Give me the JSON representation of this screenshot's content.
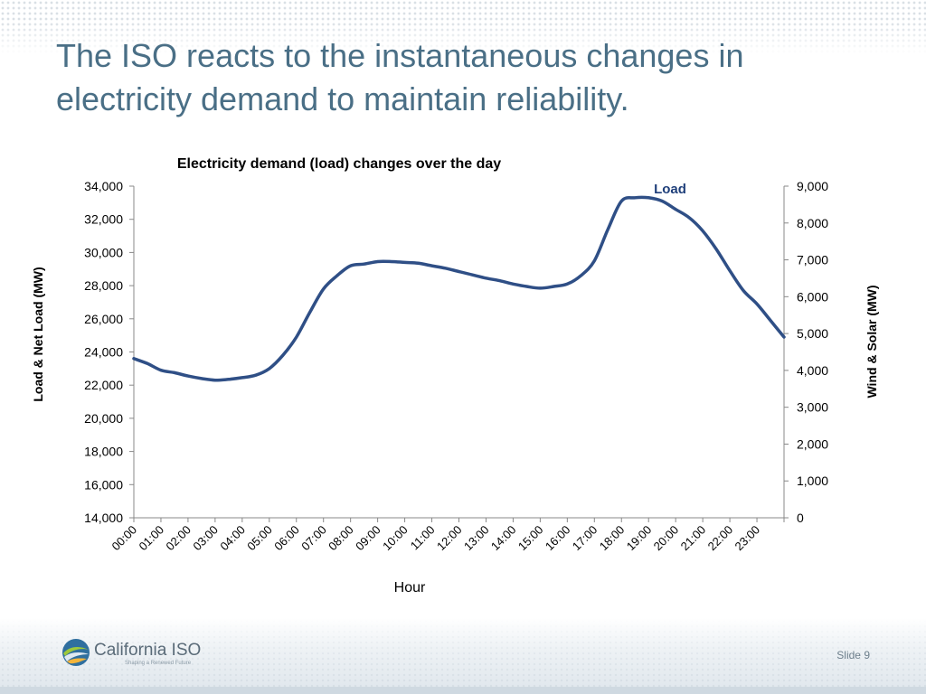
{
  "slide": {
    "title": "The ISO reacts to the instantaneous changes in electricity demand to maintain reliability.",
    "slide_number": "Slide 9",
    "logo_name": "California ISO",
    "logo_tagline": "Shaping a Renewed Future"
  },
  "colors": {
    "title": "#4a6f86",
    "load_line": "#2f4f86",
    "series_label": "#1f3f7a",
    "axis_text": "#000000"
  },
  "chart_data": {
    "type": "line",
    "title": "Electricity demand (load) changes over the day",
    "xlabel": "Hour",
    "ylabel_left": "Load & Net Load (MW)",
    "ylabel_right": "Wind & Solar (MW)",
    "y_left_range": [
      14000,
      34000
    ],
    "y_left_ticks": [
      "14,000",
      "16,000",
      "18,000",
      "20,000",
      "22,000",
      "24,000",
      "26,000",
      "28,000",
      "30,000",
      "32,000",
      "34,000"
    ],
    "y_right_range": [
      0,
      9000
    ],
    "y_right_ticks": [
      "0",
      "1,000",
      "2,000",
      "3,000",
      "4,000",
      "5,000",
      "6,000",
      "7,000",
      "8,000",
      "9,000"
    ],
    "x_range": [
      0,
      24
    ],
    "x_ticks": [
      "00:00",
      "01:00",
      "02:00",
      "03:00",
      "04:00",
      "05:00",
      "06:00",
      "07:00",
      "08:00",
      "09:00",
      "10:00",
      "11:00",
      "12:00",
      "13:00",
      "14:00",
      "15:00",
      "16:00",
      "17:00",
      "18:00",
      "19:00",
      "20:00",
      "21:00",
      "22:00",
      "23:00"
    ],
    "grid": false,
    "series": [
      {
        "name": "Load",
        "axis": "left",
        "x": [
          0,
          0.5,
          1,
          1.5,
          2,
          2.5,
          3,
          3.5,
          4,
          4.5,
          5,
          5.5,
          6,
          6.5,
          7,
          7.5,
          8,
          8.5,
          9,
          9.5,
          10,
          10.5,
          11,
          11.5,
          12,
          12.5,
          13,
          13.5,
          14,
          14.5,
          15,
          15.5,
          16,
          16.5,
          17,
          17.5,
          18,
          18.5,
          19,
          19.5,
          20,
          20.5,
          21,
          21.5,
          22,
          22.5,
          23,
          23.5,
          24
        ],
        "values": [
          23600,
          23300,
          22900,
          22750,
          22550,
          22400,
          22300,
          22350,
          22450,
          22600,
          23000,
          23800,
          24900,
          26400,
          27800,
          28600,
          29200,
          29300,
          29450,
          29450,
          29400,
          29350,
          29200,
          29050,
          28850,
          28650,
          28450,
          28300,
          28100,
          27950,
          27850,
          27950,
          28100,
          28600,
          29500,
          31400,
          33100,
          33300,
          33300,
          33100,
          32600,
          32100,
          31300,
          30200,
          28900,
          27700,
          26900,
          25900,
          24900
        ]
      }
    ]
  }
}
